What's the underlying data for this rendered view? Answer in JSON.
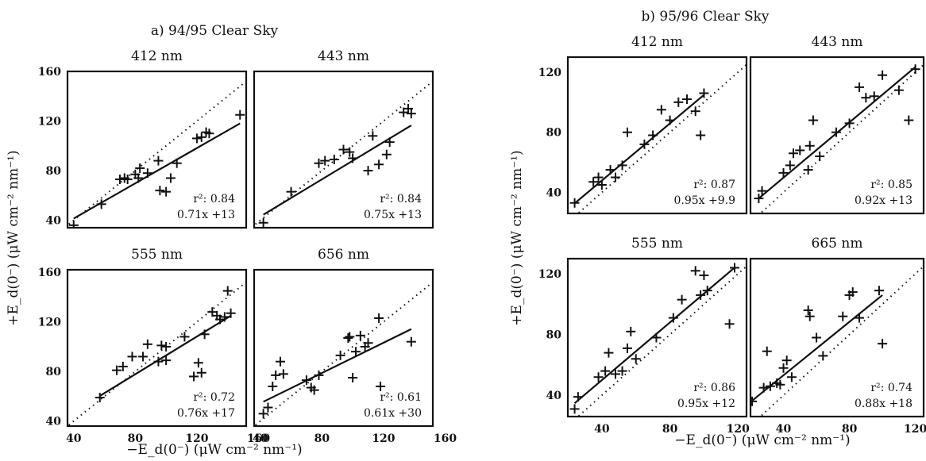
{
  "groups": [
    {
      "title": "a) 94/95 Clear Sky",
      "ylabel": "+E_d(0⁻)  (μW cm⁻² nm⁻¹)",
      "xlabel": "−E_d(0⁻)  (μW cm⁻² nm⁻¹)"
    },
    {
      "title": "b) 95/96 Clear Sky",
      "ylabel": "+E_d(0⁻)  (μW cm⁻² nm⁻¹)",
      "xlabel": "−E_d(0⁻)  (μW cm⁻² nm⁻¹)"
    }
  ],
  "chart_data": [
    {
      "type": "scatter",
      "group": 0,
      "title": "412 nm",
      "xlim": [
        36,
        152
      ],
      "ylim": [
        34,
        160
      ],
      "xticks": [],
      "yticks": [
        40,
        80,
        120,
        160
      ],
      "r2_text": "r²: 0.84",
      "fit_text": "0.71x +13",
      "fit": {
        "slope": 0.71,
        "intercept": 13
      },
      "points": [
        [
          40,
          36
        ],
        [
          58,
          53
        ],
        [
          70,
          73
        ],
        [
          73,
          74
        ],
        [
          75,
          73
        ],
        [
          80,
          77
        ],
        [
          82,
          74
        ],
        [
          83,
          82
        ],
        [
          88,
          78
        ],
        [
          95,
          88
        ],
        [
          96,
          64
        ],
        [
          100,
          63
        ],
        [
          103,
          74
        ],
        [
          107,
          86
        ],
        [
          120,
          106
        ],
        [
          123,
          107
        ],
        [
          126,
          111
        ],
        [
          128,
          110
        ],
        [
          148,
          125
        ]
      ]
    },
    {
      "type": "scatter",
      "group": 0,
      "title": "443 nm",
      "xlim": [
        36,
        152
      ],
      "ylim": [
        34,
        160
      ],
      "xticks": [],
      "yticks": [],
      "r2_text": "r²: 0.84",
      "fit_text": "0.75x +13",
      "fit": {
        "slope": 0.75,
        "intercept": 13
      },
      "points": [
        [
          42,
          38
        ],
        [
          60,
          63
        ],
        [
          78,
          86
        ],
        [
          82,
          88
        ],
        [
          88,
          89
        ],
        [
          94,
          97
        ],
        [
          98,
          95
        ],
        [
          100,
          90
        ],
        [
          110,
          80
        ],
        [
          113,
          108
        ],
        [
          117,
          85
        ],
        [
          122,
          93
        ],
        [
          124,
          103
        ],
        [
          133,
          127
        ],
        [
          136,
          130
        ],
        [
          138,
          126
        ]
      ]
    },
    {
      "type": "scatter",
      "group": 0,
      "title": "555 nm",
      "xlim": [
        36,
        152
      ],
      "ylim": [
        36,
        162
      ],
      "xticks": [
        40,
        80,
        120,
        160
      ],
      "yticks": [
        40,
        80,
        120,
        160
      ],
      "r2_text": "r²: 0.72",
      "fit_text": "0.76x +17",
      "fit": {
        "slope": 0.76,
        "intercept": 17
      },
      "points": [
        [
          57,
          59
        ],
        [
          68,
          81
        ],
        [
          72,
          84
        ],
        [
          78,
          92
        ],
        [
          85,
          92
        ],
        [
          88,
          102
        ],
        [
          95,
          88
        ],
        [
          97,
          101
        ],
        [
          100,
          89
        ],
        [
          100,
          100
        ],
        [
          112,
          108
        ],
        [
          118,
          76
        ],
        [
          121,
          87
        ],
        [
          123,
          79
        ],
        [
          125,
          110
        ],
        [
          130,
          128
        ],
        [
          133,
          125
        ],
        [
          135,
          122
        ],
        [
          138,
          124
        ],
        [
          140,
          145
        ],
        [
          142,
          127
        ]
      ]
    },
    {
      "type": "scatter",
      "group": 0,
      "title": "656 nm",
      "xlim": [
        36,
        152
      ],
      "ylim": [
        36,
        162
      ],
      "xticks": [
        40,
        80,
        120,
        160
      ],
      "yticks": [],
      "r2_text": "r²: 0.61",
      "fit_text": "0.61x +30",
      "fit": {
        "slope": 0.61,
        "intercept": 30
      },
      "points": [
        [
          42,
          46
        ],
        [
          45,
          51
        ],
        [
          48,
          68
        ],
        [
          50,
          77
        ],
        [
          53,
          88
        ],
        [
          55,
          78
        ],
        [
          70,
          73
        ],
        [
          73,
          67
        ],
        [
          75,
          65
        ],
        [
          78,
          77
        ],
        [
          92,
          93
        ],
        [
          97,
          107
        ],
        [
          98,
          108
        ],
        [
          100,
          75
        ],
        [
          102,
          96
        ],
        [
          105,
          109
        ],
        [
          108,
          100
        ],
        [
          110,
          103
        ],
        [
          117,
          123
        ],
        [
          118,
          68
        ],
        [
          138,
          104
        ]
      ]
    },
    {
      "type": "scatter",
      "group": 1,
      "title": "412 nm",
      "xlim": [
        20,
        125
      ],
      "ylim": [
        26,
        130
      ],
      "xticks": [],
      "yticks": [
        40,
        80,
        120
      ],
      "r2_text": "r²: 0.87",
      "fit_text": "0.95x +9.9",
      "fit": {
        "slope": 0.95,
        "intercept": 9.9
      },
      "points": [
        [
          24,
          33
        ],
        [
          35,
          47
        ],
        [
          38,
          50
        ],
        [
          40,
          45
        ],
        [
          45,
          55
        ],
        [
          48,
          50
        ],
        [
          52,
          58
        ],
        [
          55,
          80
        ],
        [
          65,
          72
        ],
        [
          70,
          78
        ],
        [
          75,
          95
        ],
        [
          80,
          88
        ],
        [
          85,
          100
        ],
        [
          90,
          102
        ],
        [
          95,
          94
        ],
        [
          98,
          78
        ],
        [
          100,
          106
        ]
      ]
    },
    {
      "type": "scatter",
      "group": 1,
      "title": "443 nm",
      "xlim": [
        20,
        125
      ],
      "ylim": [
        26,
        130
      ],
      "xticks": [],
      "yticks": [],
      "r2_text": "r²: 0.85",
      "fit_text": "0.92x +13",
      "fit": {
        "slope": 0.92,
        "intercept": 13
      },
      "points": [
        [
          25,
          36
        ],
        [
          27,
          41
        ],
        [
          40,
          53
        ],
        [
          44,
          58
        ],
        [
          46,
          66
        ],
        [
          50,
          68
        ],
        [
          55,
          55
        ],
        [
          56,
          71
        ],
        [
          58,
          88
        ],
        [
          62,
          64
        ],
        [
          72,
          80
        ],
        [
          80,
          86
        ],
        [
          86,
          110
        ],
        [
          90,
          103
        ],
        [
          95,
          104
        ],
        [
          100,
          118
        ],
        [
          110,
          108
        ],
        [
          116,
          88
        ],
        [
          120,
          122
        ]
      ]
    },
    {
      "type": "scatter",
      "group": 1,
      "title": "555 nm",
      "xlim": [
        20,
        125
      ],
      "ylim": [
        26,
        130
      ],
      "xticks": [
        40,
        80,
        120
      ],
      "yticks": [
        40,
        80,
        120
      ],
      "r2_text": "r²: 0.86",
      "fit_text": "0.95x +12",
      "fit": {
        "slope": 0.95,
        "intercept": 12
      },
      "points": [
        [
          24,
          31
        ],
        [
          26,
          39
        ],
        [
          38,
          52
        ],
        [
          42,
          56
        ],
        [
          44,
          68
        ],
        [
          48,
          54
        ],
        [
          52,
          56
        ],
        [
          55,
          71
        ],
        [
          57,
          82
        ],
        [
          60,
          64
        ],
        [
          72,
          78
        ],
        [
          82,
          91
        ],
        [
          87,
          103
        ],
        [
          95,
          122
        ],
        [
          98,
          106
        ],
        [
          100,
          119
        ],
        [
          102,
          109
        ],
        [
          115,
          87
        ],
        [
          118,
          124
        ]
      ]
    },
    {
      "type": "scatter",
      "group": 1,
      "title": "665 nm",
      "xlim": [
        20,
        125
      ],
      "ylim": [
        26,
        130
      ],
      "xticks": [
        40,
        80,
        120
      ],
      "yticks": [],
      "r2_text": "r²: 0.74",
      "fit_text": "0.88x +18",
      "fit": {
        "slope": 0.88,
        "intercept": 18
      },
      "points": [
        [
          21,
          36
        ],
        [
          28,
          45
        ],
        [
          30,
          69
        ],
        [
          32,
          46
        ],
        [
          36,
          48
        ],
        [
          38,
          47
        ],
        [
          40,
          58
        ],
        [
          42,
          63
        ],
        [
          45,
          52
        ],
        [
          55,
          96
        ],
        [
          56,
          92
        ],
        [
          60,
          78
        ],
        [
          64,
          66
        ],
        [
          76,
          92
        ],
        [
          80,
          106
        ],
        [
          82,
          108
        ],
        [
          86,
          91
        ],
        [
          98,
          109
        ],
        [
          100,
          74
        ]
      ]
    }
  ]
}
